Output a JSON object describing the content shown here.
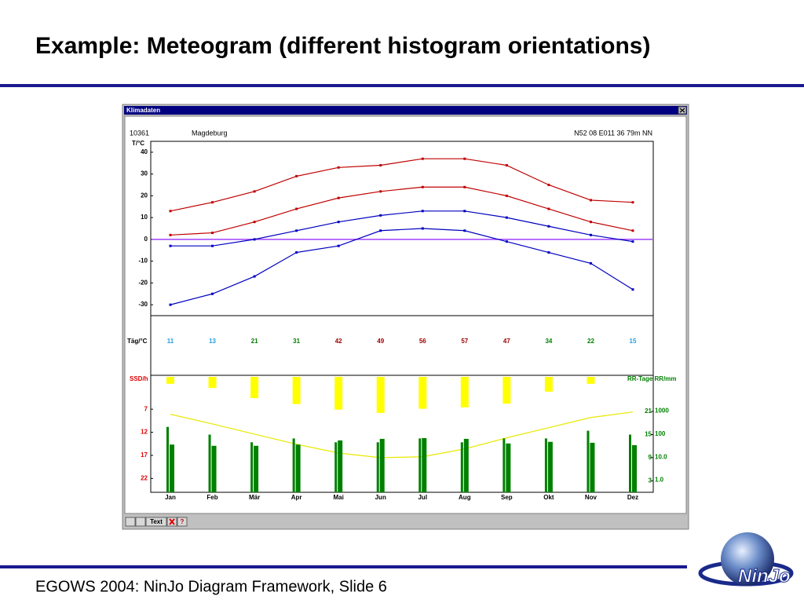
{
  "slide": {
    "title": "Example: Meteogram (different histogram orientations)",
    "footer": "EGOWS 2004: NinJo Diagram Framework, Slide 6",
    "logo": "NinJo"
  },
  "window": {
    "title": "Klimadaten",
    "station_id": "10361",
    "station_name": "Magdeburg",
    "location": "N52 08 E011 36 79m NN",
    "button_text": "Text",
    "button_help": "?"
  },
  "chart_data": [
    {
      "type": "line",
      "ylabel": "T/°C",
      "categories": [
        "Jan",
        "Feb",
        "Mär",
        "Apr",
        "Mai",
        "Jun",
        "Jul",
        "Aug",
        "Sep",
        "Okt",
        "Nov",
        "Dez"
      ],
      "ylim": [
        -35,
        45
      ],
      "yticks": [
        -30,
        -20,
        -10,
        0,
        10,
        20,
        30,
        40
      ],
      "reference_line": {
        "value": 0,
        "color": "#a040ff"
      },
      "series": [
        {
          "color": "#c00000",
          "values": [
            13,
            17,
            22,
            29,
            33,
            34,
            37,
            37,
            34,
            25,
            18,
            17
          ]
        },
        {
          "color": "#c00000",
          "values": [
            2,
            3,
            8,
            14,
            19,
            22,
            24,
            24,
            20,
            14,
            8,
            4
          ]
        },
        {
          "color": "#0000c0",
          "values": [
            -3,
            -3,
            0,
            4,
            8,
            11,
            13,
            13,
            10,
            6,
            2,
            -1
          ]
        },
        {
          "color": "#0000c0",
          "values": [
            -30,
            -25,
            -17,
            -6,
            -3,
            4,
            5,
            4,
            -1,
            -6,
            -11,
            -23
          ]
        }
      ]
    },
    {
      "type": "table",
      "label": "Täg/°C",
      "values": [
        11,
        13,
        21,
        31,
        42,
        49,
        56,
        57,
        47,
        34,
        22,
        15
      ],
      "colors": [
        "#20a0e0",
        "#20a0e0",
        "#008000",
        "#008000",
        "#a00000",
        "#a00000",
        "#a00000",
        "#a00000",
        "#a00000",
        "#008000",
        "#008000",
        "#20a0e0"
      ]
    },
    {
      "type": "bar",
      "ylabel": "SSD/h",
      "y2label": "RR-Tage RR/mm",
      "ylim": [
        0,
        25
      ],
      "yinverted": true,
      "yticks": [
        7,
        12,
        17,
        22
      ],
      "y2lim": [
        0,
        30
      ],
      "y2ticks": [
        3,
        9,
        15,
        21
      ],
      "y3lim": [
        0.3,
        30000
      ],
      "y3log": true,
      "y3ticks": [
        {
          "value": 1,
          "label": "1.0"
        },
        {
          "value": 10,
          "label": "10.0"
        },
        100,
        1000
      ],
      "axis_color": "#e00000",
      "axis2_color": "#008000",
      "series": [
        {
          "type": "bar",
          "axis": "y",
          "color": "#ffff00",
          "values": [
            1.5,
            2.4,
            4.6,
            5.9,
            7.1,
            7.8,
            6.9,
            6.6,
            5.8,
            3.2,
            1.5,
            0
          ]
        },
        {
          "type": "line",
          "axis": "y",
          "color": "#e8e800",
          "values": [
            8.1,
            10.2,
            12.4,
            14.6,
            16.5,
            17.5,
            17.3,
            15.6,
            13.2,
            11,
            8.8,
            7.6
          ]
        },
        {
          "type": "bar",
          "axis": "y2",
          "color": "#008000",
          "values": [
            17,
            15,
            13,
            14,
            13,
            13,
            14,
            13,
            14,
            14,
            16,
            15
          ]
        },
        {
          "type": "bar",
          "axis": "y3",
          "color": "#008000",
          "values": [
            35,
            31,
            31,
            35,
            53,
            62,
            67,
            62,
            39,
            46,
            42,
            33
          ]
        }
      ]
    }
  ]
}
